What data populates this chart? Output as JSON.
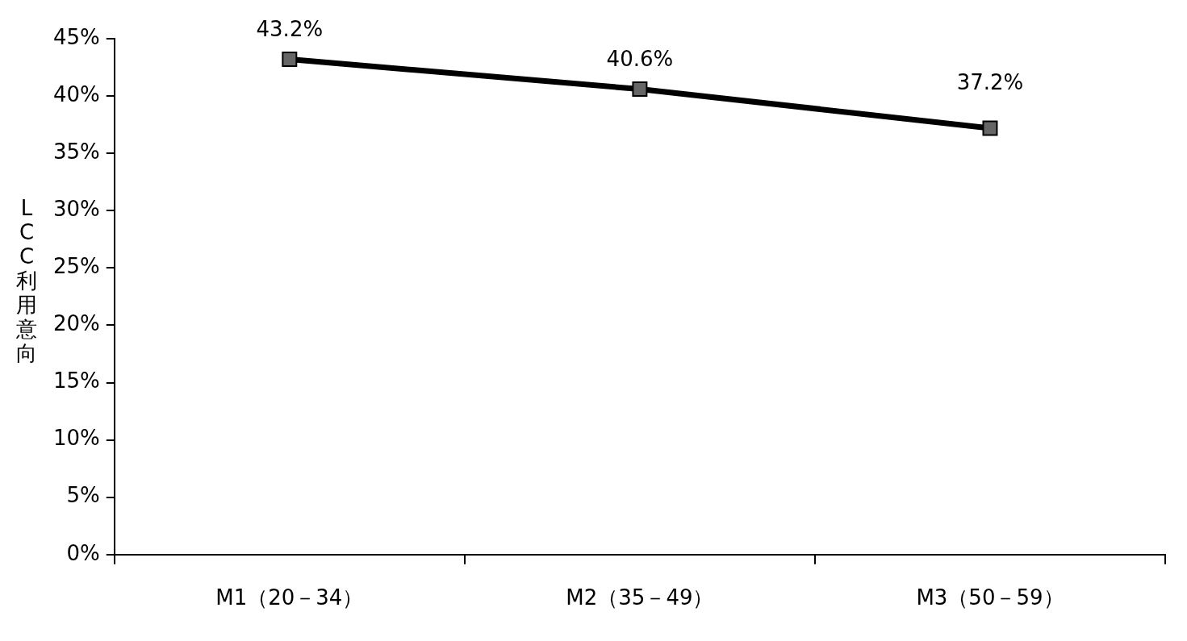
{
  "chart_data": {
    "type": "line",
    "ylabel": "LCC利用意向",
    "categories": [
      "M1（20－34）",
      "M2（35－49）",
      "M3（50－59）"
    ],
    "values": [
      43.2,
      40.6,
      37.2
    ],
    "color": "#000000",
    "marker": "square",
    "line_style": "solid",
    "value_labels": [
      "43.2%",
      "40.6%",
      "37.2%"
    ],
    "ylim": [
      0,
      45
    ],
    "yticks": [
      {
        "value": 0,
        "label": "0%"
      },
      {
        "value": 5,
        "label": "5%"
      },
      {
        "value": 10,
        "label": "10%"
      },
      {
        "value": 15,
        "label": "15%"
      },
      {
        "value": 20,
        "label": "20%"
      },
      {
        "value": 25,
        "label": "25%"
      },
      {
        "value": 30,
        "label": "30%"
      },
      {
        "value": 35,
        "label": "35%"
      },
      {
        "value": 40,
        "label": "40%"
      },
      {
        "value": 45,
        "label": "45%"
      }
    ],
    "grid": false
  }
}
